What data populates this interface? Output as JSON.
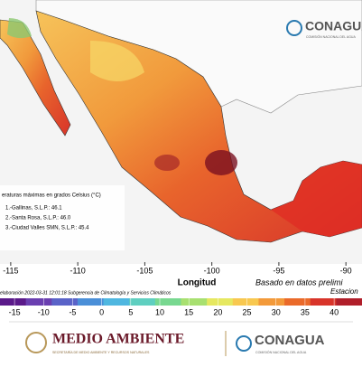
{
  "header": {
    "logo": "CONAGUA",
    "logo_subtitle": "COMISIÓN NACIONAL DEL AGUA"
  },
  "map": {
    "legend_title": "eraturas máximas en grados Celsius (°C)",
    "stations": [
      "1.-Gallinas, S.L.P.: 46.1",
      "2.-Santa Rosa, S.L.P.: 46.0",
      "3.-Ciudad Valles SMN, S.L.P.: 45.4"
    ],
    "xlabel": "Longitud",
    "xlim": [
      -115.8,
      -88.8
    ],
    "xticks": [
      -115,
      -110,
      -105,
      -100,
      -95,
      -90
    ],
    "note": "Basado en datos prelimi",
    "note2": "Estacion",
    "credit": "elaboración 2022-03-31 12:01:18 Subgerencia de Climatología y Servicios Climáticos"
  },
  "colorbar": {
    "lim": [
      -17.5,
      44.8
    ],
    "ticks": [
      -15,
      -10,
      -5,
      0,
      5,
      10,
      15,
      20,
      25,
      30,
      35,
      40
    ],
    "colors": [
      "#5b1a8a",
      "#6a3fb0",
      "#5a63c8",
      "#4a8fd8",
      "#4fb7e0",
      "#5fcfc0",
      "#78d890",
      "#a8e070",
      "#e6e860",
      "#f8c850",
      "#f39a3a",
      "#ea6a2a",
      "#d8342a",
      "#b01e2a"
    ]
  },
  "footer": {
    "left_title": "MEDIO AMBIENTE",
    "left_subtitle": "SECRETARÍA DE MEDIO AMBIENTE Y RECURSOS NATURALES",
    "right_title": "CONAGUA",
    "right_subtitle": "COMISIÓN NACIONAL DEL AGUA"
  }
}
